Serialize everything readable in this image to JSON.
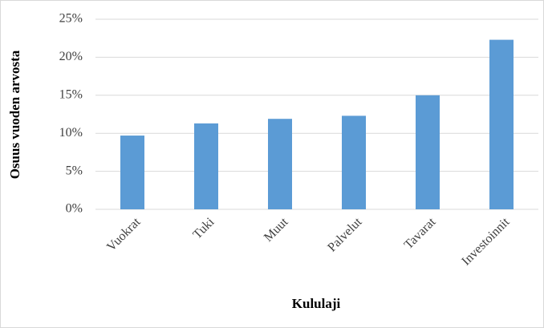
{
  "chart_data": {
    "type": "bar",
    "x_label": "Kululaji",
    "y_label": "Osuus vuoden arvosta",
    "categories": [
      "Vuokrat",
      "Tuki",
      "Muut",
      "Palvelut",
      "Tavarat",
      "Investoinnit"
    ],
    "values": [
      9.7,
      11.3,
      11.9,
      12.3,
      15.0,
      22.3
    ],
    "color": "#5b9bd5",
    "ylim": [
      0,
      25
    ],
    "yticks": [
      {
        "value": 0,
        "label": "0%"
      },
      {
        "value": 5,
        "label": "5%"
      },
      {
        "value": 10,
        "label": "10%"
      },
      {
        "value": 15,
        "label": "15%"
      },
      {
        "value": 20,
        "label": "20%"
      },
      {
        "value": 25,
        "label": "25%"
      }
    ],
    "grid": true
  }
}
